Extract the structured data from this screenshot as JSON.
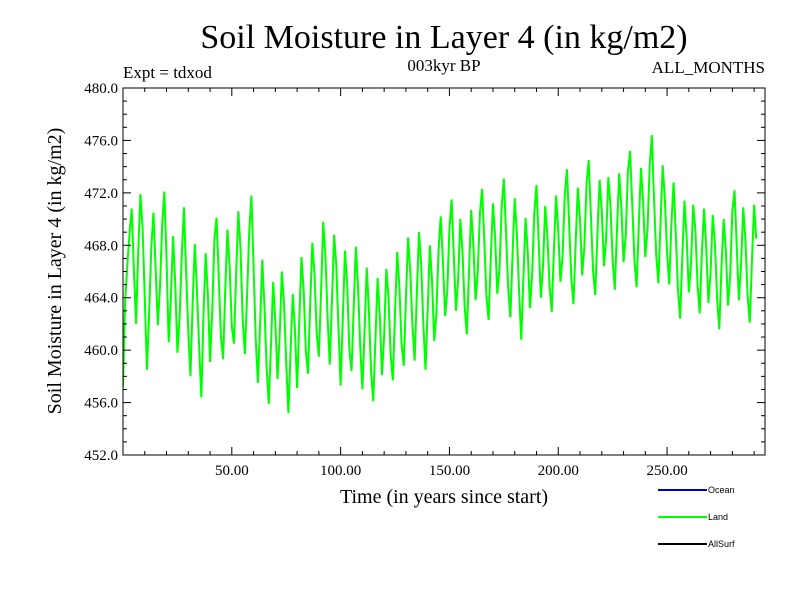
{
  "chart_data": {
    "type": "line",
    "title": "Soil Moisture in Layer 4 (in kg/m2)",
    "subtitle": "003kyr BP",
    "annotation_left": "Expt = tdxod",
    "annotation_right": "ALL_MONTHS",
    "xlabel": "Time (in years since start)",
    "ylabel": "Soil Moisture in Layer 4 (in kg/m2)",
    "xlim": [
      0,
      295
    ],
    "ylim": [
      452,
      480
    ],
    "x_ticks": [
      50,
      100,
      150,
      200,
      250
    ],
    "x_tick_labels": [
      "50.00",
      "100.00",
      "150.00",
      "200.00",
      "250.00"
    ],
    "y_ticks": [
      452,
      456,
      460,
      464,
      468,
      472,
      476,
      480
    ],
    "y_tick_labels": [
      "452.0",
      "456.0",
      "460.0",
      "464.0",
      "468.0",
      "472.0",
      "476.0",
      "480.0"
    ],
    "legend": [
      {
        "name": "Ocean",
        "color": "#0000cc"
      },
      {
        "name": "Land",
        "color": "#00ff00"
      },
      {
        "name": "AllSurf",
        "color": "#000000"
      }
    ],
    "series": [
      {
        "name": "Land",
        "color": "#00ff00",
        "x_start": 0,
        "x_step": 1,
        "values": [
          457.2,
          463.8,
          466.5,
          468.9,
          470.8,
          466.1,
          462.0,
          467.5,
          471.9,
          469.3,
          464.0,
          458.5,
          462.7,
          467.8,
          470.5,
          466.2,
          461.9,
          464.8,
          469.6,
          472.1,
          467.0,
          460.6,
          463.9,
          468.7,
          465.1,
          459.8,
          462.5,
          467.2,
          470.9,
          466.0,
          461.4,
          458.0,
          463.6,
          468.1,
          464.5,
          460.2,
          456.4,
          462.8,
          467.4,
          464.2,
          459.1,
          463.0,
          468.5,
          470.1,
          465.6,
          461.0,
          459.3,
          464.7,
          469.2,
          466.3,
          461.8,
          460.5,
          465.9,
          470.6,
          467.7,
          462.3,
          459.7,
          464.1,
          469.0,
          471.8,
          466.4,
          460.8,
          457.5,
          462.0,
          466.9,
          463.3,
          458.6,
          455.9,
          460.4,
          465.2,
          462.1,
          457.8,
          461.2,
          466.0,
          463.5,
          459.0,
          455.2,
          459.9,
          464.3,
          461.6,
          457.1,
          462.2,
          467.1,
          464.6,
          460.0,
          458.2,
          463.4,
          468.2,
          465.8,
          461.3,
          459.5,
          464.4,
          469.8,
          467.3,
          462.5,
          458.9,
          463.7,
          468.8,
          466.5,
          461.7,
          457.3,
          462.4,
          467.6,
          465.0,
          460.1,
          458.4,
          463.2,
          467.9,
          464.9,
          460.3,
          457.0,
          461.5,
          466.3,
          463.0,
          458.3,
          456.1,
          460.9,
          465.5,
          462.6,
          458.1,
          461.1,
          466.2,
          464.0,
          459.6,
          457.7,
          462.9,
          467.5,
          464.8,
          460.5,
          458.8,
          463.9,
          468.6,
          466.0,
          461.9,
          459.2,
          464.2,
          469.0,
          466.6,
          462.0,
          458.5,
          463.1,
          468.0,
          465.3,
          460.7,
          462.8,
          467.7,
          470.2,
          466.8,
          462.6,
          464.5,
          469.3,
          471.5,
          467.2,
          463.0,
          465.4,
          470.0,
          467.5,
          463.3,
          461.2,
          466.1,
          470.7,
          468.0,
          463.8,
          465.9,
          470.4,
          472.3,
          468.4,
          464.1,
          462.3,
          467.0,
          471.2,
          468.6,
          464.3,
          466.2,
          470.9,
          473.1,
          469.0,
          464.7,
          462.5,
          467.3,
          471.6,
          468.8,
          464.5,
          460.8,
          465.6,
          470.1,
          467.4,
          463.2,
          465.8,
          470.5,
          472.6,
          468.3,
          464.0,
          466.4,
          471.0,
          468.7,
          464.9,
          462.9,
          467.6,
          471.8,
          469.1,
          465.2,
          467.3,
          471.9,
          473.8,
          469.6,
          465.5,
          463.5,
          468.2,
          472.4,
          469.9,
          465.7,
          467.9,
          472.7,
          474.5,
          470.3,
          466.0,
          464.2,
          468.9,
          473.0,
          470.6,
          466.4,
          468.5,
          473.2,
          471.0,
          466.8,
          464.6,
          469.3,
          473.5,
          470.9,
          466.7,
          468.7,
          473.6,
          475.2,
          471.1,
          466.9,
          464.8,
          469.5,
          473.9,
          471.3,
          467.1,
          469.2,
          474.0,
          476.4,
          471.6,
          467.3,
          465.1,
          469.8,
          474.1,
          471.5,
          467.4,
          465.0,
          469.7,
          472.8,
          468.9,
          464.6,
          462.4,
          467.1,
          471.4,
          468.6,
          464.4,
          466.6,
          471.1,
          469.2,
          465.0,
          462.8,
          467.5,
          470.8,
          467.8,
          463.6,
          465.9,
          470.3,
          468.1,
          463.9,
          461.6,
          466.3,
          470.0,
          467.6,
          463.4,
          465.7,
          470.6,
          472.2,
          468.0,
          463.8,
          466.5,
          470.9,
          468.4,
          464.2,
          462.1,
          466.8,
          471.1,
          468.5
        ]
      }
    ]
  }
}
